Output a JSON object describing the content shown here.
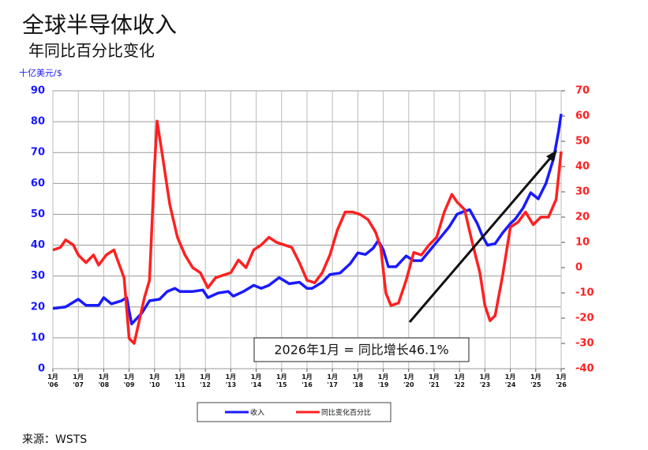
{
  "chart_data": {
    "type": "line",
    "title": "全球半导体收入",
    "subtitle": "年同比百分比变化",
    "y_label": "十亿美元/$",
    "annotation": "2026年1月 = 同比增长46.1%",
    "source": "来源：WSTS",
    "xlim": [
      2006,
      2026
    ],
    "xticks": [
      {
        "value": 2006,
        "label": "1月 '06"
      },
      {
        "value": 2007,
        "label": "1月 '07"
      },
      {
        "value": 2008,
        "label": "1月 '08"
      },
      {
        "value": 2009,
        "label": "1月 '09"
      },
      {
        "value": 2010,
        "label": "1月 '10"
      },
      {
        "value": 2011,
        "label": "1月 '11"
      },
      {
        "value": 2012,
        "label": "1月 '12"
      },
      {
        "value": 2013,
        "label": "1月 '13"
      },
      {
        "value": 2014,
        "label": "1月 '14"
      },
      {
        "value": 2015,
        "label": "1月 '15"
      },
      {
        "value": 2016,
        "label": "1月 '16"
      },
      {
        "value": 2017,
        "label": "1月 '17"
      },
      {
        "value": 2018,
        "label": "1月 '18"
      },
      {
        "value": 2019,
        "label": "1月 '19"
      },
      {
        "value": 2020,
        "label": "1月 '20"
      },
      {
        "value": 2021,
        "label": "1月 '21"
      },
      {
        "value": 2022,
        "label": "1月 '22"
      },
      {
        "value": 2023,
        "label": "1月 '23"
      },
      {
        "value": 2024,
        "label": "1月 '24"
      },
      {
        "value": 2025,
        "label": "1月 '25"
      },
      {
        "value": 2026,
        "label": "1月 '26"
      }
    ],
    "ylim": [
      0,
      90
    ],
    "yticks": [
      0,
      10,
      20,
      30,
      40,
      50,
      60,
      70,
      80,
      90
    ],
    "y2lim": [
      -40,
      70
    ],
    "y2ticks": [
      -40,
      -30,
      -20,
      -10,
      0,
      10,
      20,
      30,
      40,
      50,
      60,
      70
    ],
    "grid": true,
    "series": [
      {
        "name": "收入",
        "color": "#1a1aff",
        "x": [
          2006.0,
          2006.5,
          2007.0,
          2007.3,
          2007.8,
          2008.0,
          2008.3,
          2008.7,
          2008.9,
          2009.1,
          2009.5,
          2009.8,
          2010.2,
          2010.5,
          2010.8,
          2011.0,
          2011.5,
          2011.9,
          2012.1,
          2012.5,
          2012.9,
          2013.1,
          2013.5,
          2013.9,
          2014.2,
          2014.5,
          2014.9,
          2015.3,
          2015.7,
          2016.0,
          2016.2,
          2016.6,
          2016.9,
          2017.3,
          2017.7,
          2018.0,
          2018.3,
          2018.6,
          2018.8,
          2019.0,
          2019.2,
          2019.5,
          2019.9,
          2020.2,
          2020.5,
          2020.8,
          2021.0,
          2021.3,
          2021.6,
          2021.9,
          2022.2,
          2022.4,
          2022.7,
          2022.9,
          2023.1,
          2023.4,
          2023.7,
          2024.0,
          2024.2,
          2024.5,
          2024.8,
          2025.1,
          2025.4,
          2025.7,
          2025.9,
          2026.0
        ],
        "values": [
          19.5,
          20,
          22.5,
          20.5,
          20.5,
          23,
          21,
          22,
          23,
          14.5,
          18,
          22,
          22.5,
          25,
          26,
          25,
          25,
          25.5,
          23,
          24.5,
          25,
          23.5,
          25,
          27,
          26,
          27,
          29.5,
          27.5,
          28,
          26,
          26,
          28,
          30.5,
          31,
          34,
          37.5,
          37,
          39,
          41.5,
          38.5,
          33,
          33,
          36.5,
          35,
          35,
          38,
          40,
          43,
          46,
          50,
          51,
          51.5,
          47,
          43,
          40,
          40.5,
          44,
          47,
          48.5,
          52,
          57,
          55,
          60,
          68,
          77,
          82.5
        ]
      },
      {
        "name": "同比变化百分比",
        "color": "#ff2020",
        "axis": "y2",
        "x": [
          2006.0,
          2006.3,
          2006.5,
          2006.8,
          2007.0,
          2007.3,
          2007.6,
          2007.8,
          2008.1,
          2008.4,
          2008.8,
          2009.0,
          2009.2,
          2009.6,
          2009.8,
          2010.0,
          2010.1,
          2010.3,
          2010.6,
          2010.9,
          2011.2,
          2011.5,
          2011.8,
          2012.1,
          2012.4,
          2012.7,
          2013.0,
          2013.3,
          2013.6,
          2013.9,
          2014.2,
          2014.5,
          2014.8,
          2015.1,
          2015.4,
          2015.7,
          2016.0,
          2016.3,
          2016.6,
          2016.9,
          2017.2,
          2017.5,
          2017.8,
          2018.1,
          2018.4,
          2018.7,
          2018.9,
          2019.1,
          2019.3,
          2019.6,
          2019.9,
          2020.2,
          2020.5,
          2020.8,
          2021.1,
          2021.4,
          2021.7,
          2021.9,
          2022.2,
          2022.5,
          2022.8,
          2023.0,
          2023.2,
          2023.4,
          2023.7,
          2024.0,
          2024.3,
          2024.6,
          2024.9,
          2025.2,
          2025.5,
          2025.8,
          2026.0
        ],
        "values": [
          7,
          8,
          11,
          9,
          5,
          2,
          5,
          1,
          5,
          7,
          -4,
          -28,
          -30,
          -12,
          -5,
          40,
          58,
          45,
          25,
          12,
          5,
          0,
          -2,
          -8,
          -4,
          -3,
          -2,
          3,
          0,
          7,
          9,
          12,
          10,
          9,
          8,
          2,
          -5,
          -6,
          -2,
          5,
          15,
          22,
          22,
          21,
          19,
          14,
          8,
          -10,
          -15,
          -14,
          -5,
          6,
          5,
          9,
          12,
          22,
          29,
          26,
          23,
          10,
          -2,
          -15,
          -21,
          -19,
          -3,
          16,
          18,
          22,
          17,
          20,
          20,
          27,
          46
        ]
      }
    ]
  }
}
